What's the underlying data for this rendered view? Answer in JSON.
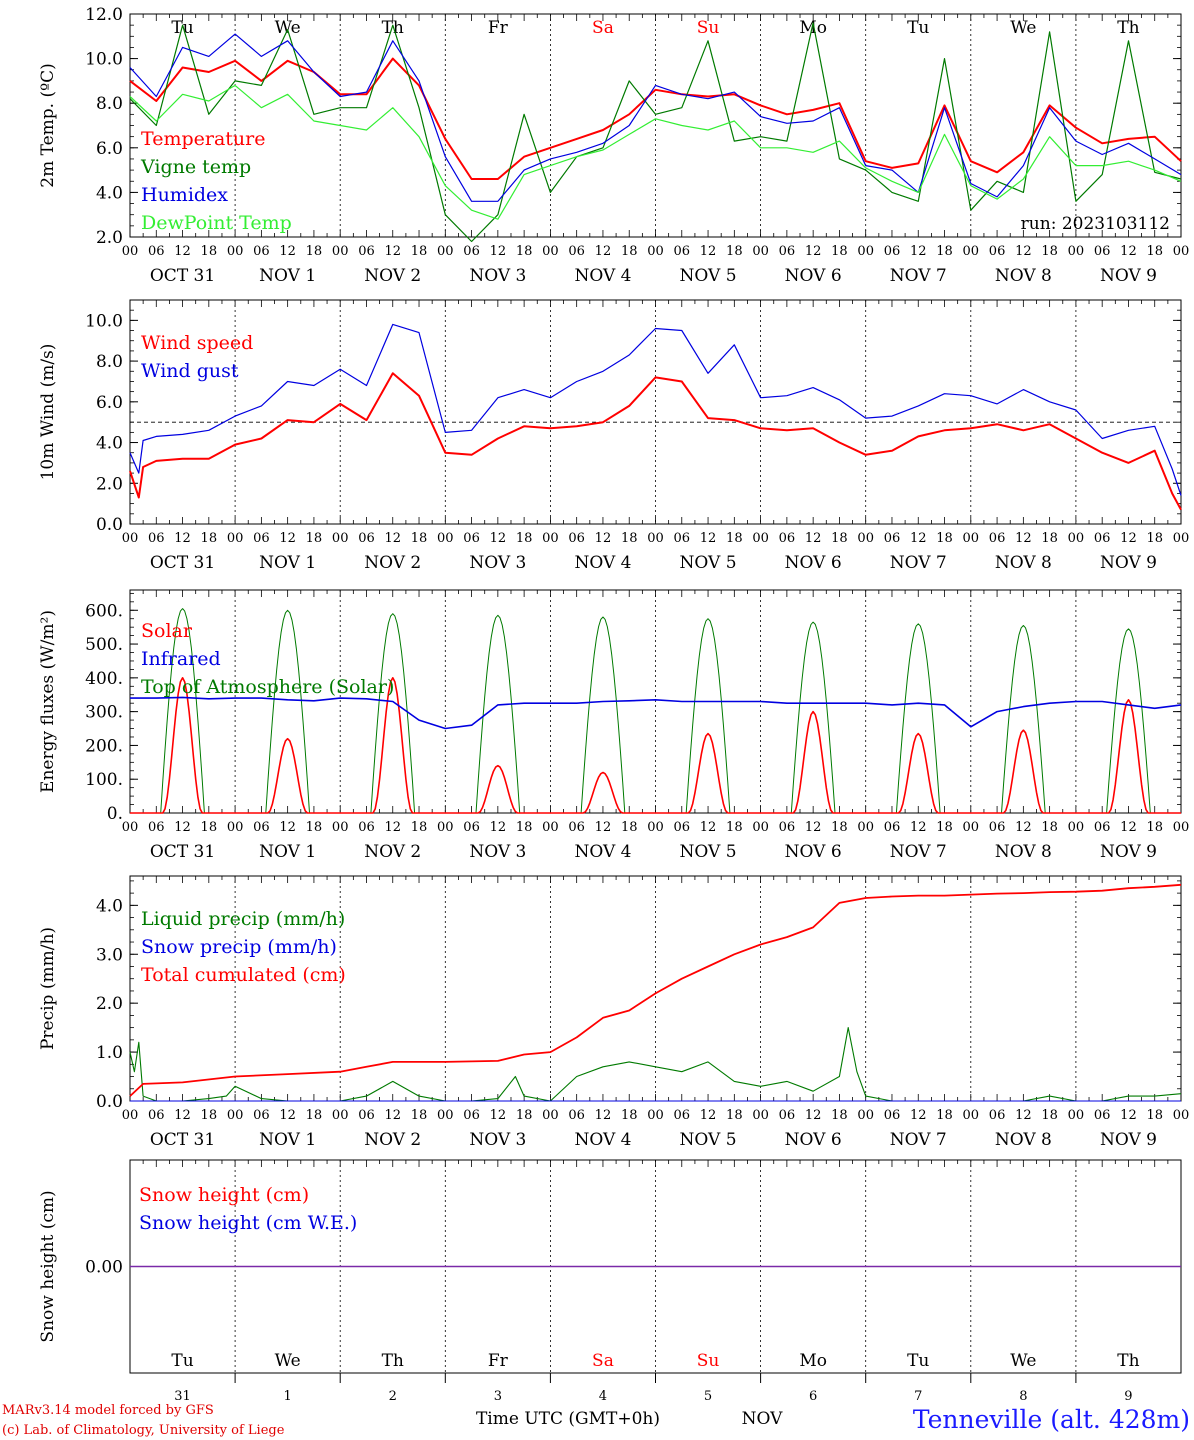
{
  "colors": {
    "red": "#ff0000",
    "green": "#007a00",
    "blue": "#0000e0",
    "lightgreen": "#33ee33",
    "purple": "#7a2aa8",
    "black": "#000000",
    "footer_red": "#e00000",
    "station_blue": "#1a1aff"
  },
  "days": {
    "weekday_top": [
      "Tu",
      "We",
      "Th",
      "Fr",
      "Sa",
      "Su",
      "Mo",
      "Tu",
      "We",
      "Th"
    ],
    "weekday_colors": [
      "black",
      "black",
      "black",
      "black",
      "red",
      "red",
      "black",
      "black",
      "black",
      "black"
    ],
    "date_labels": [
      "OCT 31",
      "NOV  1",
      "NOV  2",
      "NOV  3",
      "NOV  4",
      "NOV  5",
      "NOV  6",
      "NOV  7",
      "NOV  8",
      "NOV  9"
    ],
    "day_numbers": [
      "31",
      "1",
      "2",
      "3",
      "4",
      "5",
      "6",
      "7",
      "8",
      "9"
    ],
    "hour_ticks": [
      "00",
      "06",
      "12",
      "18"
    ],
    "final_tick": "00"
  },
  "run_label": "run: 2023103112",
  "footer": {
    "model_line": "MARv3.14 model forced by GFS",
    "lab_line": "(c) Lab. of Climatology, University of Liege",
    "time_label": "Time UTC (GMT+0h)",
    "month_label": "NOV",
    "station": "Tenneville (alt. 428m)"
  },
  "chart_data": [
    {
      "type": "line",
      "ylabel": "2m Temp. (ºC)",
      "ylim": [
        2.0,
        12.0
      ],
      "yticks": [
        "2.0",
        "4.0",
        "6.0",
        "8.0",
        "10.0",
        "12.0"
      ],
      "series": [
        {
          "name": "Temperature",
          "color": "red",
          "x": [
            0,
            6,
            12,
            18,
            24,
            30,
            36,
            42,
            48,
            54,
            60,
            66,
            72,
            78,
            84,
            90,
            96,
            102,
            108,
            114,
            120,
            126,
            132,
            138,
            144,
            150,
            156,
            162,
            168,
            174,
            180,
            186,
            192,
            198,
            204,
            210,
            216,
            222,
            228,
            234,
            240
          ],
          "values": [
            9.0,
            8.1,
            9.6,
            9.4,
            9.9,
            9.0,
            9.9,
            9.4,
            8.4,
            8.4,
            10.0,
            8.8,
            6.4,
            4.6,
            4.6,
            5.6,
            6.0,
            6.4,
            6.8,
            7.5,
            8.6,
            8.4,
            8.3,
            8.4,
            7.9,
            7.5,
            7.7,
            8.0,
            5.4,
            5.1,
            5.3,
            7.9,
            5.4,
            4.9,
            5.8,
            7.9,
            6.9,
            6.2,
            6.4,
            6.5,
            5.4
          ]
        },
        {
          "name": "Vigne temp",
          "color": "green",
          "x": [
            0,
            6,
            12,
            18,
            24,
            30,
            36,
            42,
            48,
            54,
            60,
            66,
            72,
            78,
            84,
            90,
            96,
            102,
            108,
            114,
            120,
            126,
            132,
            138,
            144,
            150,
            156,
            162,
            168,
            174,
            180,
            186,
            192,
            198,
            204,
            210,
            216,
            222,
            228,
            234,
            240
          ],
          "values": [
            8.2,
            7.0,
            11.5,
            7.5,
            9.0,
            8.8,
            11.3,
            7.5,
            7.8,
            7.8,
            11.5,
            7.8,
            3.0,
            1.8,
            3.0,
            7.5,
            4.0,
            5.6,
            6.0,
            9.0,
            7.5,
            7.8,
            10.8,
            6.3,
            6.5,
            6.3,
            11.6,
            5.5,
            5.0,
            4.0,
            3.6,
            10.0,
            3.2,
            4.5,
            4.0,
            11.2,
            3.6,
            4.8,
            10.8,
            4.9,
            4.6
          ]
        },
        {
          "name": "Humidex",
          "color": "blue",
          "x": [
            0,
            6,
            12,
            18,
            24,
            30,
            36,
            42,
            48,
            54,
            60,
            66,
            72,
            78,
            84,
            90,
            96,
            102,
            108,
            114,
            120,
            126,
            132,
            138,
            144,
            150,
            156,
            162,
            168,
            174,
            180,
            186,
            192,
            198,
            204,
            210,
            216,
            222,
            228,
            234,
            240
          ],
          "values": [
            9.6,
            8.3,
            10.5,
            10.1,
            11.1,
            10.1,
            10.8,
            9.4,
            8.3,
            8.5,
            10.8,
            9.0,
            5.6,
            3.6,
            3.6,
            5.0,
            5.5,
            5.8,
            6.2,
            7.0,
            8.8,
            8.4,
            8.2,
            8.5,
            7.4,
            7.1,
            7.2,
            7.8,
            5.2,
            5.0,
            4.0,
            7.8,
            4.4,
            3.8,
            5.2,
            7.8,
            6.3,
            5.7,
            6.2,
            5.5,
            4.8
          ]
        },
        {
          "name": "DewPoint Temp",
          "color": "lightgreen",
          "x": [
            0,
            6,
            12,
            18,
            24,
            30,
            36,
            42,
            48,
            54,
            60,
            66,
            72,
            78,
            84,
            90,
            96,
            102,
            108,
            114,
            120,
            126,
            132,
            138,
            144,
            150,
            156,
            162,
            168,
            174,
            180,
            186,
            192,
            198,
            204,
            210,
            216,
            222,
            228,
            234,
            240
          ],
          "values": [
            8.3,
            7.2,
            8.4,
            8.1,
            8.8,
            7.8,
            8.4,
            7.2,
            7.0,
            6.8,
            7.8,
            6.5,
            4.3,
            3.2,
            2.8,
            4.8,
            5.2,
            5.6,
            5.9,
            6.6,
            7.3,
            7.0,
            6.8,
            7.2,
            6.0,
            6.0,
            5.8,
            6.3,
            5.1,
            4.5,
            4.0,
            6.6,
            4.3,
            3.7,
            4.6,
            6.5,
            5.2,
            5.2,
            5.4,
            5.0,
            4.5
          ]
        }
      ]
    },
    {
      "type": "line",
      "ylabel": "10m Wind (m/s)",
      "ylim": [
        0.0,
        11.0
      ],
      "yticks": [
        "0.0",
        "2.0",
        "4.0",
        "6.0",
        "8.0",
        "10.0"
      ],
      "reference_line": 5.0,
      "series": [
        {
          "name": "Wind speed",
          "color": "red",
          "x": [
            0,
            2,
            3,
            6,
            12,
            18,
            24,
            30,
            36,
            42,
            48,
            54,
            60,
            66,
            72,
            78,
            84,
            90,
            96,
            102,
            108,
            114,
            120,
            126,
            132,
            138,
            144,
            150,
            156,
            162,
            168,
            174,
            180,
            186,
            192,
            198,
            204,
            210,
            216,
            222,
            228,
            234,
            238,
            240
          ],
          "values": [
            2.6,
            1.3,
            2.8,
            3.1,
            3.2,
            3.2,
            3.9,
            4.2,
            5.1,
            5.0,
            5.9,
            5.1,
            7.4,
            6.3,
            3.5,
            3.4,
            4.2,
            4.8,
            4.7,
            4.8,
            5.0,
            5.8,
            7.2,
            7.0,
            5.2,
            5.1,
            4.7,
            4.6,
            4.7,
            4.0,
            3.4,
            3.6,
            4.3,
            4.6,
            4.7,
            4.9,
            4.6,
            4.9,
            4.2,
            3.5,
            3.0,
            3.6,
            1.5,
            0.7
          ]
        },
        {
          "name": "Wind gust",
          "color": "blue",
          "x": [
            0,
            2,
            3,
            6,
            12,
            18,
            24,
            30,
            36,
            42,
            48,
            54,
            60,
            66,
            72,
            78,
            84,
            90,
            96,
            102,
            108,
            114,
            120,
            126,
            132,
            138,
            144,
            150,
            156,
            162,
            168,
            174,
            180,
            186,
            192,
            198,
            204,
            210,
            216,
            222,
            228,
            234,
            238,
            240
          ],
          "values": [
            3.5,
            2.5,
            4.1,
            4.3,
            4.4,
            4.6,
            5.3,
            5.8,
            7.0,
            6.8,
            7.6,
            6.8,
            9.8,
            9.4,
            4.5,
            4.6,
            6.2,
            6.6,
            6.2,
            7.0,
            7.5,
            8.3,
            9.6,
            9.5,
            7.4,
            8.8,
            6.2,
            6.3,
            6.7,
            6.1,
            5.2,
            5.3,
            5.8,
            6.4,
            6.3,
            5.9,
            6.6,
            6.0,
            5.6,
            4.2,
            4.6,
            4.8,
            2.7,
            1.4
          ]
        }
      ]
    },
    {
      "type": "line",
      "ylabel": "Energy fluxes (W/m²)",
      "ylim": [
        0,
        600
      ],
      "yticks": [
        "0.",
        "100.",
        "200.",
        "300.",
        "400.",
        "500.",
        "600."
      ],
      "series": [
        {
          "name": "Solar",
          "color": "red",
          "peaks": [
            [
              12,
              400
            ],
            [
              36,
              220
            ],
            [
              60,
              400
            ],
            [
              84,
              140
            ],
            [
              108,
              120
            ],
            [
              132,
              235
            ],
            [
              156,
              300
            ],
            [
              180,
              235
            ],
            [
              204,
              245
            ],
            [
              228,
              335
            ]
          ]
        },
        {
          "name": "Infrared",
          "color": "blue",
          "x": [
            0,
            6,
            12,
            18,
            24,
            30,
            36,
            42,
            48,
            54,
            60,
            66,
            72,
            78,
            84,
            90,
            96,
            102,
            108,
            114,
            120,
            126,
            132,
            138,
            144,
            150,
            156,
            162,
            168,
            174,
            180,
            186,
            192,
            198,
            204,
            210,
            216,
            222,
            228,
            234,
            240
          ],
          "values": [
            340,
            340,
            342,
            338,
            340,
            340,
            335,
            332,
            340,
            338,
            330,
            275,
            250,
            260,
            320,
            325,
            325,
            325,
            330,
            332,
            335,
            330,
            330,
            330,
            330,
            325,
            325,
            325,
            325,
            320,
            325,
            320,
            255,
            300,
            315,
            325,
            330,
            330,
            320,
            310,
            320
          ]
        },
        {
          "name": "Top of Atmosphere (Solar)",
          "color": "green",
          "peaks": [
            [
              12,
              605
            ],
            [
              36,
              600
            ],
            [
              60,
              590
            ],
            [
              84,
              585
            ],
            [
              108,
              580
            ],
            [
              132,
              575
            ],
            [
              156,
              565
            ],
            [
              180,
              560
            ],
            [
              204,
              555
            ],
            [
              228,
              545
            ]
          ]
        }
      ]
    },
    {
      "type": "line",
      "ylabel": "Precip (mm/h)",
      "ylim": [
        0.0,
        4.5
      ],
      "yticks": [
        "0.0",
        "1.0",
        "2.0",
        "3.0",
        "4.0"
      ],
      "series": [
        {
          "name": "Liquid precip (mm/h)",
          "color": "green",
          "x": [
            0,
            1,
            2,
            3,
            6,
            12,
            18,
            22,
            24,
            30,
            36,
            48,
            54,
            60,
            66,
            72,
            78,
            84,
            88,
            90,
            96,
            102,
            108,
            114,
            120,
            126,
            132,
            138,
            144,
            150,
            156,
            162,
            164,
            166,
            168,
            174,
            180,
            186,
            192,
            198,
            204,
            210,
            216,
            222,
            228,
            234,
            240
          ],
          "values": [
            1.0,
            0.6,
            1.2,
            0.1,
            0.0,
            0.0,
            0.05,
            0.1,
            0.3,
            0.05,
            0.0,
            0.0,
            0.1,
            0.4,
            0.1,
            0.0,
            0.0,
            0.05,
            0.5,
            0.1,
            0.0,
            0.5,
            0.7,
            0.8,
            0.7,
            0.6,
            0.8,
            0.4,
            0.3,
            0.4,
            0.2,
            0.5,
            1.5,
            0.6,
            0.1,
            0.0,
            0.0,
            0.0,
            0.0,
            0.0,
            0.0,
            0.1,
            0.0,
            0.0,
            0.1,
            0.1,
            0.15
          ]
        },
        {
          "name": "Snow precip (mm/h)",
          "color": "blue",
          "x": [
            0,
            240
          ],
          "values": [
            0.0,
            0.0
          ]
        },
        {
          "name": "Total cumulated (cm)",
          "color": "red",
          "x": [
            0,
            3,
            12,
            24,
            36,
            48,
            54,
            60,
            72,
            84,
            90,
            96,
            102,
            108,
            114,
            120,
            126,
            132,
            138,
            144,
            150,
            156,
            162,
            168,
            174,
            180,
            186,
            192,
            198,
            204,
            210,
            216,
            222,
            228,
            234,
            240
          ],
          "values": [
            0.1,
            0.35,
            0.38,
            0.5,
            0.55,
            0.6,
            0.7,
            0.8,
            0.8,
            0.82,
            0.95,
            1.0,
            1.3,
            1.7,
            1.85,
            2.2,
            2.5,
            2.75,
            3.0,
            3.2,
            3.35,
            3.55,
            4.05,
            4.15,
            4.18,
            4.2,
            4.2,
            4.22,
            4.24,
            4.25,
            4.27,
            4.28,
            4.3,
            4.35,
            4.38,
            4.42
          ]
        }
      ]
    },
    {
      "type": "line",
      "ylabel": "Snow height (cm)",
      "yticks": [
        "0.00"
      ],
      "series": [
        {
          "name": "Snow height (cm)",
          "color": "red",
          "x": [
            0,
            240
          ],
          "values": [
            0,
            0
          ]
        },
        {
          "name": "Snow height (cm W.E.)",
          "color": "blue",
          "x": [
            0,
            240
          ],
          "values": [
            0,
            0
          ]
        }
      ]
    }
  ]
}
